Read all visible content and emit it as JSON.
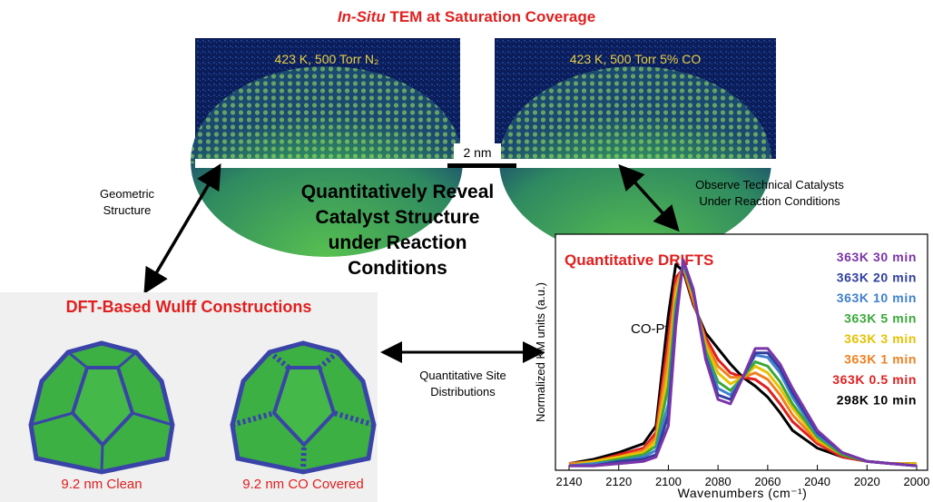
{
  "tem": {
    "title_italic": "In-Situ",
    "title": "TEM at Saturation Coverage",
    "images": [
      {
        "label": "423 K, 500 Torr N₂"
      },
      {
        "label": "423 K, 500 Torr 5% CO"
      }
    ],
    "scale_bar": "2 nm"
  },
  "center_text": [
    "Quantitatively Reveal",
    "Catalyst Structure",
    "under Reaction",
    "Conditions"
  ],
  "arrow_labels": {
    "geometric": [
      "Geometric",
      "Structure"
    ],
    "observe": [
      "Observe Technical Catalysts",
      "Under Reaction Conditions"
    ],
    "site": [
      "Quantitative Site",
      "Distributions"
    ]
  },
  "wulff": {
    "title": "DFT-Based Wulff Constructions",
    "captions": [
      "9.2 nm Clean",
      "9.2 nm CO Covered"
    ]
  },
  "chart_data": {
    "type": "line",
    "title": "Quantitative DRIFTS",
    "annotation": "CO-Pt",
    "y_label": "Normalized KM units (a.u.)",
    "x_label": "Wavenumbers (cm⁻¹)",
    "xlim": [
      2140,
      2000
    ],
    "xticks": [
      2140,
      2120,
      2100,
      2080,
      2060,
      2040,
      2020,
      2000
    ],
    "ylim": [
      0,
      1.05
    ],
    "x": [
      2140,
      2130,
      2120,
      2110,
      2105,
      2100,
      2097,
      2094,
      2090,
      2085,
      2080,
      2075,
      2070,
      2065,
      2060,
      2055,
      2050,
      2040,
      2030,
      2020,
      2010,
      2000
    ],
    "series": [
      {
        "name": "363K 30 min",
        "color": "#7a35a8",
        "values": [
          0.02,
          0.02,
          0.03,
          0.04,
          0.06,
          0.2,
          0.65,
          0.95,
          0.82,
          0.5,
          0.32,
          0.3,
          0.42,
          0.55,
          0.55,
          0.48,
          0.37,
          0.18,
          0.08,
          0.04,
          0.03,
          0.02
        ]
      },
      {
        "name": "363K 20 min",
        "color": "#2f3f9e",
        "values": [
          0.02,
          0.02,
          0.04,
          0.05,
          0.07,
          0.25,
          0.68,
          0.95,
          0.81,
          0.51,
          0.34,
          0.32,
          0.42,
          0.53,
          0.53,
          0.46,
          0.35,
          0.17,
          0.08,
          0.04,
          0.03,
          0.02
        ]
      },
      {
        "name": "363K 10 min",
        "color": "#3f80d0",
        "values": [
          0.02,
          0.03,
          0.04,
          0.06,
          0.09,
          0.3,
          0.71,
          0.94,
          0.81,
          0.52,
          0.37,
          0.34,
          0.42,
          0.52,
          0.51,
          0.44,
          0.33,
          0.16,
          0.08,
          0.04,
          0.03,
          0.02
        ]
      },
      {
        "name": "363K 5 min",
        "color": "#3aa83a",
        "values": [
          0.02,
          0.03,
          0.05,
          0.07,
          0.11,
          0.38,
          0.75,
          0.93,
          0.8,
          0.54,
          0.4,
          0.36,
          0.42,
          0.49,
          0.47,
          0.4,
          0.3,
          0.15,
          0.07,
          0.04,
          0.03,
          0.02
        ]
      },
      {
        "name": "363K 3 min",
        "color": "#e6c200",
        "values": [
          0.02,
          0.04,
          0.06,
          0.08,
          0.13,
          0.45,
          0.79,
          0.93,
          0.79,
          0.56,
          0.44,
          0.39,
          0.42,
          0.47,
          0.44,
          0.37,
          0.28,
          0.14,
          0.07,
          0.04,
          0.03,
          0.03
        ]
      },
      {
        "name": "363K 1 min",
        "color": "#f08020",
        "values": [
          0.03,
          0.04,
          0.06,
          0.09,
          0.15,
          0.53,
          0.83,
          0.92,
          0.77,
          0.58,
          0.47,
          0.42,
          0.42,
          0.44,
          0.41,
          0.34,
          0.25,
          0.13,
          0.07,
          0.04,
          0.03,
          0.03
        ]
      },
      {
        "name": "363K 0.5 min",
        "color": "#e02020",
        "values": [
          0.03,
          0.04,
          0.07,
          0.1,
          0.17,
          0.6,
          0.87,
          0.91,
          0.76,
          0.6,
          0.5,
          0.44,
          0.42,
          0.41,
          0.37,
          0.3,
          0.22,
          0.12,
          0.06,
          0.04,
          0.03,
          0.03
        ]
      },
      {
        "name": "298K 10 min",
        "color": "#000000",
        "values": [
          0.03,
          0.05,
          0.08,
          0.12,
          0.2,
          0.7,
          0.93,
          0.9,
          0.75,
          0.62,
          0.55,
          0.48,
          0.42,
          0.38,
          0.33,
          0.26,
          0.18,
          0.1,
          0.06,
          0.04,
          0.03,
          0.03
        ]
      }
    ]
  }
}
